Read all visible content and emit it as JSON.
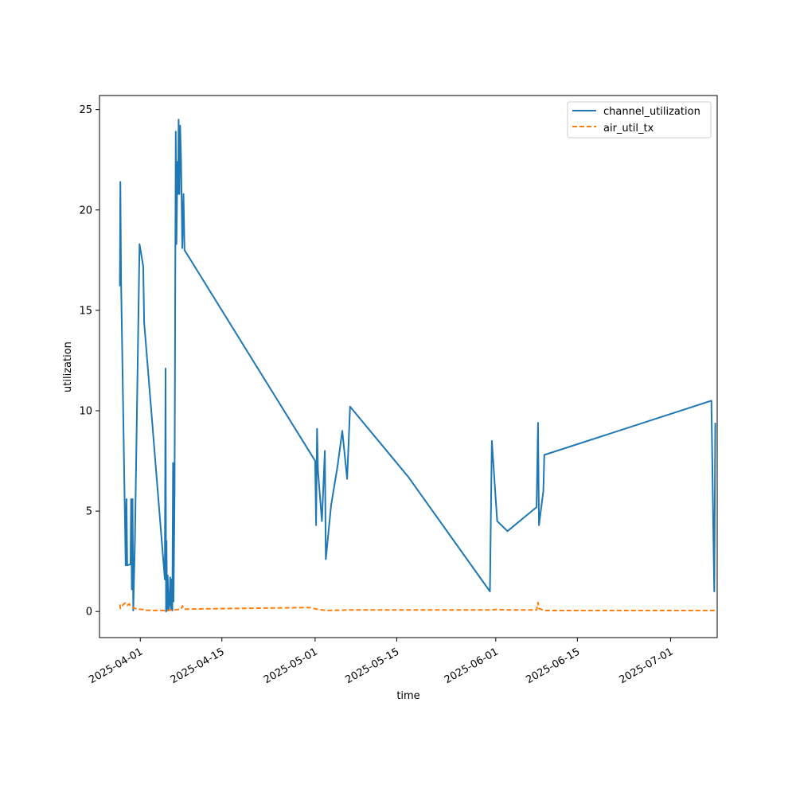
{
  "chart_data": {
    "type": "line",
    "title": "",
    "xlabel": "time",
    "ylabel": "utilization",
    "xlim": [
      "2025-03-25",
      "2025-07-09"
    ],
    "ylim": [
      -1.3,
      25.7
    ],
    "x_ticks": [
      "2025-04-01",
      "2025-04-15",
      "2025-05-01",
      "2025-05-15",
      "2025-06-01",
      "2025-06-15",
      "2025-07-01"
    ],
    "y_ticks": [
      0,
      5,
      10,
      15,
      20,
      25
    ],
    "grid": false,
    "legend_position": "top-right",
    "colors": {
      "channel_utilization": "#1f77b4",
      "air_util_tx": "#ff7f0e"
    },
    "series": [
      {
        "name": "channel_utilization",
        "style": "solid",
        "points": [
          [
            "2025-03-28T12:00",
            16.2
          ],
          [
            "2025-03-28T14:00",
            21.4
          ],
          [
            "2025-03-28T17:00",
            16.5
          ],
          [
            "2025-03-29T12:00",
            2.3
          ],
          [
            "2025-03-29T15:00",
            5.6
          ],
          [
            "2025-03-29T18:00",
            2.3
          ],
          [
            "2025-03-30T08:00",
            2.35
          ],
          [
            "2025-03-30T10:00",
            5.6
          ],
          [
            "2025-03-30T13:00",
            1.1
          ],
          [
            "2025-03-30T16:00",
            5.6
          ],
          [
            "2025-03-30T19:00",
            0.05
          ],
          [
            "2025-03-31T02:00",
            3.5
          ],
          [
            "2025-03-31T21:00",
            18.3
          ],
          [
            "2025-04-01T12:00",
            17.2
          ],
          [
            "2025-04-01T16:00",
            14.4
          ],
          [
            "2025-04-05T05:00",
            1.6
          ],
          [
            "2025-04-05T08:00",
            12.1
          ],
          [
            "2025-04-05T10:00",
            0.0
          ],
          [
            "2025-04-05T12:00",
            3.5
          ],
          [
            "2025-04-05T14:00",
            0.05
          ],
          [
            "2025-04-05T17:00",
            1.8
          ],
          [
            "2025-04-05T20:00",
            0.05
          ],
          [
            "2025-04-06T00:00",
            0.4
          ],
          [
            "2025-04-06T03:00",
            1.7
          ],
          [
            "2025-04-06T06:00",
            0.1
          ],
          [
            "2025-04-06T09:00",
            1.6
          ],
          [
            "2025-04-06T12:00",
            0.05
          ],
          [
            "2025-04-06T15:00",
            7.4
          ],
          [
            "2025-04-06T17:00",
            0.5
          ],
          [
            "2025-04-06T21:00",
            6.0
          ],
          [
            "2025-04-07T02:00",
            23.9
          ],
          [
            "2025-04-07T05:00",
            18.3
          ],
          [
            "2025-04-07T09:00",
            22.4
          ],
          [
            "2025-04-07T12:00",
            20.8
          ],
          [
            "2025-04-07T14:00",
            24.5
          ],
          [
            "2025-04-07T17:00",
            20.8
          ],
          [
            "2025-04-07T20:00",
            24.2
          ],
          [
            "2025-04-08T00:00",
            22.4
          ],
          [
            "2025-04-08T05:00",
            18.1
          ],
          [
            "2025-04-08T10:00",
            20.8
          ],
          [
            "2025-04-08T14:00",
            18.0
          ],
          [
            "2025-05-01T00:00",
            7.5
          ],
          [
            "2025-05-01T04:00",
            4.3
          ],
          [
            "2025-05-01T08:00",
            9.1
          ],
          [
            "2025-05-01T12:00",
            7.0
          ],
          [
            "2025-05-02T04:00",
            4.5
          ],
          [
            "2025-05-02T16:00",
            8.0
          ],
          [
            "2025-05-02T20:00",
            2.6
          ],
          [
            "2025-05-03T18:00",
            5.3
          ],
          [
            "2025-05-04T20:00",
            7.2
          ],
          [
            "2025-05-05T16:00",
            9.0
          ],
          [
            "2025-05-06T12:00",
            6.6
          ],
          [
            "2025-05-07T00:00",
            10.2
          ],
          [
            "2025-05-17T00:00",
            6.7
          ],
          [
            "2025-05-31T00:00",
            1.0
          ],
          [
            "2025-05-31T08:00",
            8.5
          ],
          [
            "2025-06-01T06:00",
            4.5
          ],
          [
            "2025-06-03T00:00",
            4.0
          ],
          [
            "2025-06-08T00:00",
            5.2
          ],
          [
            "2025-06-08T06:00",
            9.4
          ],
          [
            "2025-06-08T10:00",
            4.3
          ],
          [
            "2025-06-09T04:00",
            6.0
          ],
          [
            "2025-06-09T08:00",
            7.8
          ],
          [
            "2025-07-08T00:00",
            10.5
          ],
          [
            "2025-07-08T12:00",
            1.0
          ],
          [
            "2025-07-08T16:00",
            9.4
          ]
        ]
      },
      {
        "name": "air_util_tx",
        "style": "dashed",
        "points": [
          [
            "2025-03-28T12:00",
            0.35
          ],
          [
            "2025-03-28T14:00",
            0.15
          ],
          [
            "2025-03-28T17:00",
            0.2
          ],
          [
            "2025-03-29T02:00",
            0.35
          ],
          [
            "2025-03-29T10:00",
            0.42
          ],
          [
            "2025-03-29T18:00",
            0.3
          ],
          [
            "2025-03-30T02:00",
            0.38
          ],
          [
            "2025-03-30T10:00",
            0.25
          ],
          [
            "2025-03-30T19:00",
            0.18
          ],
          [
            "2025-03-31T12:00",
            0.12
          ],
          [
            "2025-04-01T12:00",
            0.1
          ],
          [
            "2025-04-01T16:00",
            0.06
          ],
          [
            "2025-04-05T12:00",
            0.05
          ],
          [
            "2025-04-06T12:00",
            0.07
          ],
          [
            "2025-04-07T12:00",
            0.1
          ],
          [
            "2025-04-08T00:00",
            0.12
          ],
          [
            "2025-04-08T06:00",
            0.28
          ],
          [
            "2025-04-08T12:00",
            0.12
          ],
          [
            "2025-04-30T00:00",
            0.2
          ],
          [
            "2025-05-01T06:00",
            0.12
          ],
          [
            "2025-05-03T00:00",
            0.05
          ],
          [
            "2025-05-07T00:00",
            0.08
          ],
          [
            "2025-05-31T00:00",
            0.08
          ],
          [
            "2025-06-01T00:00",
            0.1
          ],
          [
            "2025-06-03T00:00",
            0.08
          ],
          [
            "2025-06-08T00:00",
            0.08
          ],
          [
            "2025-06-08T06:00",
            0.45
          ],
          [
            "2025-06-08T10:00",
            0.15
          ],
          [
            "2025-06-09T08:00",
            0.05
          ],
          [
            "2025-07-08T16:00",
            0.05
          ]
        ]
      }
    ]
  }
}
